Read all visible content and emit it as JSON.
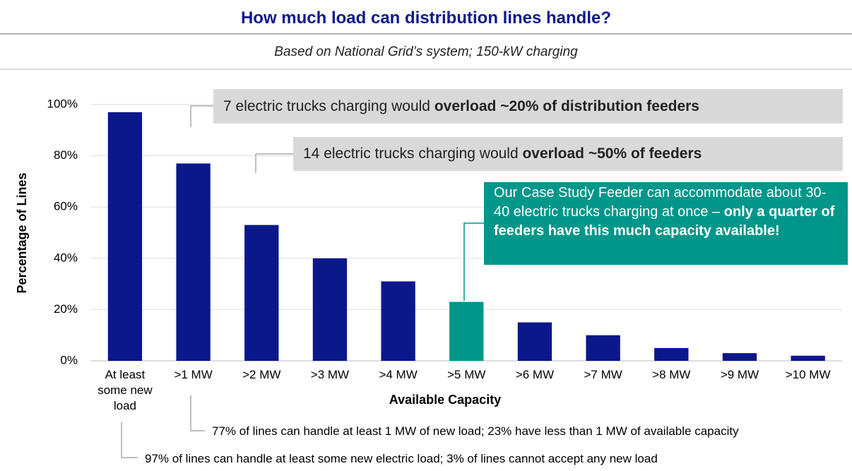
{
  "chart_data": {
    "type": "bar",
    "title": "How much load can distribution lines handle?",
    "subtitle": "Based on National Grid’s system; 150-kW charging",
    "x_label": "Available Capacity",
    "y_label": "Percentage of Lines",
    "categories": [
      "At least some new load",
      ">1 MW",
      ">2 MW",
      ">3 MW",
      ">4 MW",
      ">5 MW",
      ">6 MW",
      ">7 MW",
      ">8 MW",
      ">9 MW",
      ">10 MW"
    ],
    "values": [
      97,
      77,
      53,
      40,
      31,
      23,
      15,
      10,
      5,
      3,
      2
    ],
    "colors": [
      "#0b188a",
      "#0b188a",
      "#0b188a",
      "#0b188a",
      "#0b188a",
      "#00968a",
      "#0b188a",
      "#0b188a",
      "#0b188a",
      "#0b188a",
      "#0b188a"
    ],
    "ylim": [
      0,
      100
    ],
    "yticks": [
      {
        "value": 0,
        "label": "0%"
      },
      {
        "value": 20,
        "label": "20%"
      },
      {
        "value": 40,
        "label": "40%"
      },
      {
        "value": 60,
        "label": "60%"
      },
      {
        "value": 80,
        "label": "80%"
      },
      {
        "value": 100,
        "label": "100%"
      }
    ],
    "grid": true,
    "annotations": [
      {
        "text": "7 electric trucks charging would ",
        "bold": "overload ~20% of distribution feeders"
      },
      {
        "text": "14 electric trucks charging would ",
        "bold": "overload ~50% of feeders"
      },
      {
        "text": "Our Case Study Feeder can accommodate about 30-40 electric trucks charging at once – ",
        "bold": "only a quarter of feeders have this much capacity available!"
      }
    ],
    "notes": [
      "77% of lines can handle at least 1 MW of new load; 23% have less than 1 MW of available capacity",
      "97% of lines can handle at least some new electric load; 3% of lines cannot accept any new load"
    ]
  }
}
